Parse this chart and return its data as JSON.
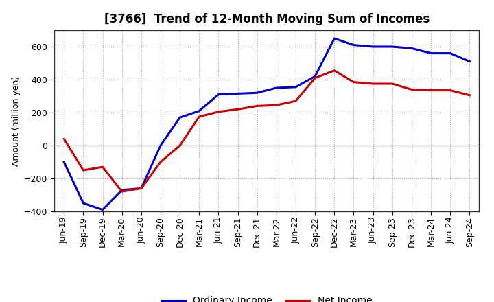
{
  "title": "[3766]  Trend of 12-Month Moving Sum of Incomes",
  "ylabel": "Amount (million yen)",
  "x_labels": [
    "Jun-19",
    "Sep-19",
    "Dec-19",
    "Mar-20",
    "Jun-20",
    "Sep-20",
    "Dec-20",
    "Mar-21",
    "Jun-21",
    "Sep-21",
    "Dec-21",
    "Mar-22",
    "Jun-22",
    "Sep-22",
    "Dec-22",
    "Mar-23",
    "Jun-23",
    "Sep-23",
    "Dec-23",
    "Mar-24",
    "Jun-24",
    "Sep-24"
  ],
  "ordinary_income": [
    -100,
    -350,
    -390,
    -270,
    -260,
    0,
    170,
    210,
    310,
    315,
    320,
    350,
    355,
    420,
    650,
    610,
    600,
    600,
    590,
    560,
    560,
    510
  ],
  "net_income": [
    40,
    -150,
    -130,
    -280,
    -260,
    -100,
    0,
    175,
    205,
    220,
    240,
    245,
    270,
    410,
    455,
    385,
    375,
    375,
    340,
    335,
    335,
    305
  ],
  "ordinary_income_color": "#0000cc",
  "net_income_color": "#cc0000",
  "ylim": [
    -400,
    700
  ],
  "yticks": [
    -400,
    -200,
    0,
    200,
    400,
    600
  ],
  "background_color": "#ffffff",
  "plot_bg_color": "#ffffff",
  "grid_color": "#aaaaaa",
  "legend_labels": [
    "Ordinary Income",
    "Net Income"
  ],
  "line_width": 2.2,
  "title_fontsize": 12,
  "axis_label_fontsize": 9,
  "tick_fontsize": 9
}
